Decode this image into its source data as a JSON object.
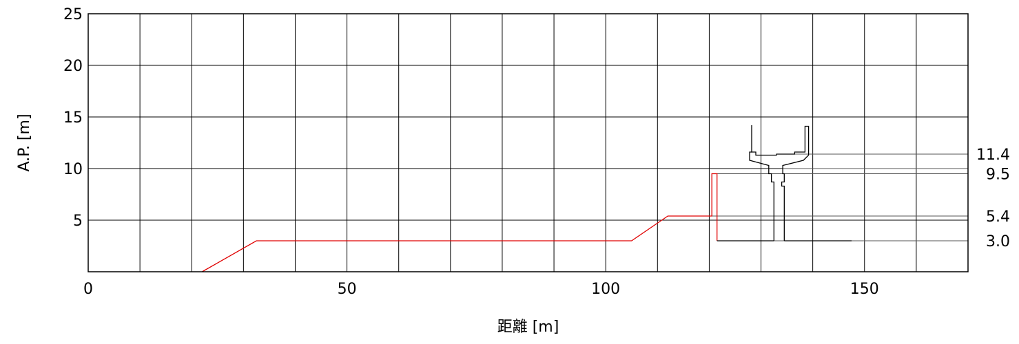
{
  "chart_data": {
    "type": "line",
    "xlabel": "距離 [m]",
    "ylabel": "A.P. [m]",
    "xlim": [
      0,
      170
    ],
    "ylim": [
      0,
      25
    ],
    "x_ticks": [
      0,
      50,
      100,
      150
    ],
    "y_ticks": [
      5,
      10,
      15,
      20,
      25
    ],
    "grid": true,
    "grid_x_step": 10,
    "grid_y_step": 5,
    "series": [
      {
        "color": "#e00000",
        "points": [
          [
            22,
            0
          ],
          [
            32.5,
            3.0
          ],
          [
            105,
            3.0
          ],
          [
            112,
            5.4
          ],
          [
            120.5,
            5.4
          ],
          [
            120.5,
            9.5
          ],
          [
            121.5,
            9.5
          ],
          [
            121.5,
            3.0
          ]
        ]
      },
      {
        "color": "#000000",
        "points": [
          [
            121.5,
            3.0
          ],
          [
            132.5,
            3.0
          ]
        ]
      },
      {
        "color": "#000000",
        "points": [
          [
            134.5,
            3.0
          ],
          [
            147.5,
            3.0
          ]
        ]
      },
      {
        "color": "#000000",
        "points": [
          [
            128.2,
            14.2
          ],
          [
            128.2,
            11.6
          ],
          [
            129,
            11.6
          ],
          [
            129,
            11.3
          ],
          [
            133,
            11.3
          ],
          [
            133,
            11.4
          ],
          [
            136.5,
            11.4
          ],
          [
            136.5,
            11.6
          ],
          [
            138.5,
            11.6
          ],
          [
            138.5,
            14.1
          ],
          [
            139.2,
            14.1
          ],
          [
            139.2,
            11.3
          ],
          [
            138.2,
            10.8
          ],
          [
            134.2,
            10.3
          ],
          [
            134.2,
            9.5
          ],
          [
            134.5,
            9.5
          ],
          [
            134.5,
            8.7
          ],
          [
            134.0,
            8.7
          ],
          [
            134.0,
            8.3
          ],
          [
            134.5,
            8.3
          ],
          [
            134.5,
            3.0
          ]
        ]
      },
      {
        "color": "#000000",
        "points": [
          [
            128.2,
            11.6
          ],
          [
            127.8,
            11.6
          ],
          [
            127.8,
            10.8
          ],
          [
            131.5,
            10.3
          ],
          [
            131.5,
            9.5
          ],
          [
            132.0,
            9.5
          ],
          [
            132.0,
            8.7
          ],
          [
            132.5,
            8.7
          ],
          [
            132.5,
            8.3
          ],
          [
            132.5,
            3.0
          ]
        ]
      }
    ],
    "reference_levels": [
      {
        "y": 11.4,
        "x_from": 136.5,
        "label": "11.4"
      },
      {
        "y": 10.0,
        "x_from": 134.2,
        "label": ""
      },
      {
        "y": 9.5,
        "x_from": 121.5,
        "label": "9.5"
      },
      {
        "y": 5.4,
        "x_from": 120.5,
        "label": "5.4"
      },
      {
        "y": 3.0,
        "x_from": 121.5,
        "label": "3.0"
      }
    ]
  }
}
